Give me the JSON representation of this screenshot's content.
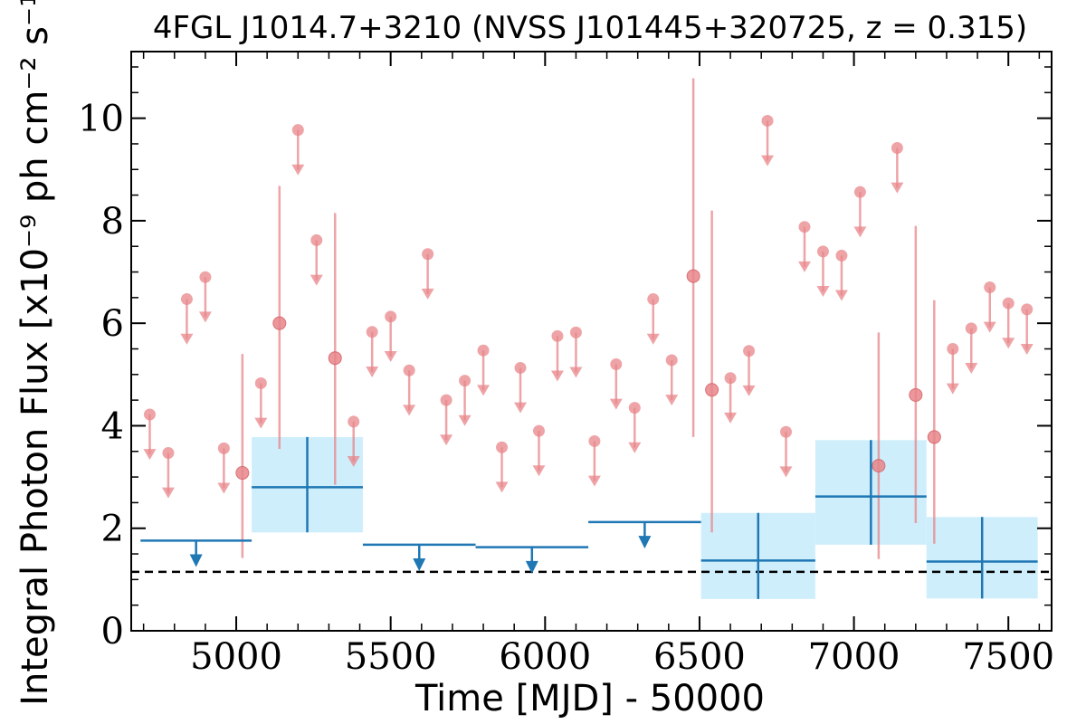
{
  "chart_data": {
    "type": "scatter",
    "title": "4FGL J1014.7+3210 (NVSS J101445+320725, z = 0.315)",
    "xlabel": "Time [MJD] - 50000",
    "ylabel": "Integral Photon Flux [x10⁻⁹ ph cm⁻² s⁻¹]",
    "xlim": [
      4660,
      7640
    ],
    "ylim": [
      0,
      11.3
    ],
    "x_ticks": [
      "5000",
      "5500",
      "6000",
      "6500",
      "7000",
      "7500"
    ],
    "x_tick_values": [
      5000,
      5500,
      6000,
      6500,
      7000,
      7500
    ],
    "y_ticks": [
      "0",
      "2",
      "4",
      "6",
      "8",
      "10"
    ],
    "y_tick_values": [
      0,
      2,
      4,
      6,
      8,
      10
    ],
    "reference_line": {
      "y": 1.15,
      "style": "dashed",
      "color": "#000000"
    },
    "series": [
      {
        "type": "upper_limits",
        "color": "#e8868a",
        "points": [
          {
            "x": 4720,
            "y": 4.22
          },
          {
            "x": 4780,
            "y": 3.47
          },
          {
            "x": 4840,
            "y": 6.47
          },
          {
            "x": 4900,
            "y": 6.9
          },
          {
            "x": 4960,
            "y": 3.56
          },
          {
            "x": 5080,
            "y": 4.83
          },
          {
            "x": 5200,
            "y": 9.77
          },
          {
            "x": 5260,
            "y": 7.62
          },
          {
            "x": 5380,
            "y": 4.08
          },
          {
            "x": 5440,
            "y": 5.83
          },
          {
            "x": 5500,
            "y": 6.13
          },
          {
            "x": 5560,
            "y": 5.08
          },
          {
            "x": 5620,
            "y": 7.35
          },
          {
            "x": 5680,
            "y": 4.5
          },
          {
            "x": 5740,
            "y": 4.88
          },
          {
            "x": 5800,
            "y": 5.47
          },
          {
            "x": 5860,
            "y": 3.58
          },
          {
            "x": 5920,
            "y": 5.13
          },
          {
            "x": 5980,
            "y": 3.9
          },
          {
            "x": 6040,
            "y": 5.75
          },
          {
            "x": 6100,
            "y": 5.82
          },
          {
            "x": 6160,
            "y": 3.7
          },
          {
            "x": 6230,
            "y": 5.2
          },
          {
            "x": 6290,
            "y": 4.35
          },
          {
            "x": 6350,
            "y": 6.47
          },
          {
            "x": 6410,
            "y": 5.28
          },
          {
            "x": 6600,
            "y": 4.93
          },
          {
            "x": 6660,
            "y": 5.46
          },
          {
            "x": 6720,
            "y": 9.95
          },
          {
            "x": 6780,
            "y": 3.88
          },
          {
            "x": 6840,
            "y": 7.88
          },
          {
            "x": 6900,
            "y": 7.4
          },
          {
            "x": 6960,
            "y": 7.32
          },
          {
            "x": 7020,
            "y": 8.56
          },
          {
            "x": 7140,
            "y": 9.42
          },
          {
            "x": 7320,
            "y": 5.5
          },
          {
            "x": 7380,
            "y": 5.9
          },
          {
            "x": 7440,
            "y": 6.7
          },
          {
            "x": 7500,
            "y": 6.39
          },
          {
            "x": 7560,
            "y": 6.27
          }
        ]
      },
      {
        "type": "detections",
        "color": "#e8868a",
        "points": [
          {
            "x": 5020,
            "y": 3.08,
            "ylo": 1.42,
            "yhi": 5.4
          },
          {
            "x": 5140,
            "y": 6.0,
            "ylo": 3.55,
            "yhi": 8.68
          },
          {
            "x": 5320,
            "y": 5.32,
            "ylo": 2.85,
            "yhi": 8.15
          },
          {
            "x": 6480,
            "y": 6.92,
            "ylo": 3.78,
            "yhi": 10.78
          },
          {
            "x": 6540,
            "y": 4.7,
            "ylo": 1.92,
            "yhi": 8.2
          },
          {
            "x": 7080,
            "y": 3.22,
            "ylo": 1.4,
            "yhi": 5.82
          },
          {
            "x": 7200,
            "y": 4.6,
            "ylo": 2.1,
            "yhi": 7.9
          },
          {
            "x": 7260,
            "y": 3.78,
            "ylo": 1.7,
            "yhi": 6.45
          }
        ]
      },
      {
        "type": "binned_upper_limits",
        "color": "#1f77b4",
        "points": [
          {
            "x0": 4690,
            "x1": 5050,
            "y": 1.76
          },
          {
            "x0": 5410,
            "x1": 5775,
            "y": 1.68
          },
          {
            "x0": 5775,
            "x1": 6140,
            "y": 1.63
          },
          {
            "x0": 6140,
            "x1": 6505,
            "y": 2.12
          }
        ]
      },
      {
        "type": "binned_detections",
        "color": "#1f77b4",
        "band_color": "#cfeefc",
        "points": [
          {
            "x0": 5050,
            "x1": 5410,
            "y": 2.8,
            "ylo": 1.92,
            "yhi": 3.78
          },
          {
            "x0": 6505,
            "x1": 6875,
            "y": 1.37,
            "ylo": 0.62,
            "yhi": 2.3
          },
          {
            "x0": 6875,
            "x1": 7235,
            "y": 2.62,
            "ylo": 1.68,
            "yhi": 3.72
          },
          {
            "x0": 7235,
            "x1": 7595,
            "y": 1.35,
            "ylo": 0.63,
            "yhi": 2.22
          }
        ]
      }
    ]
  }
}
